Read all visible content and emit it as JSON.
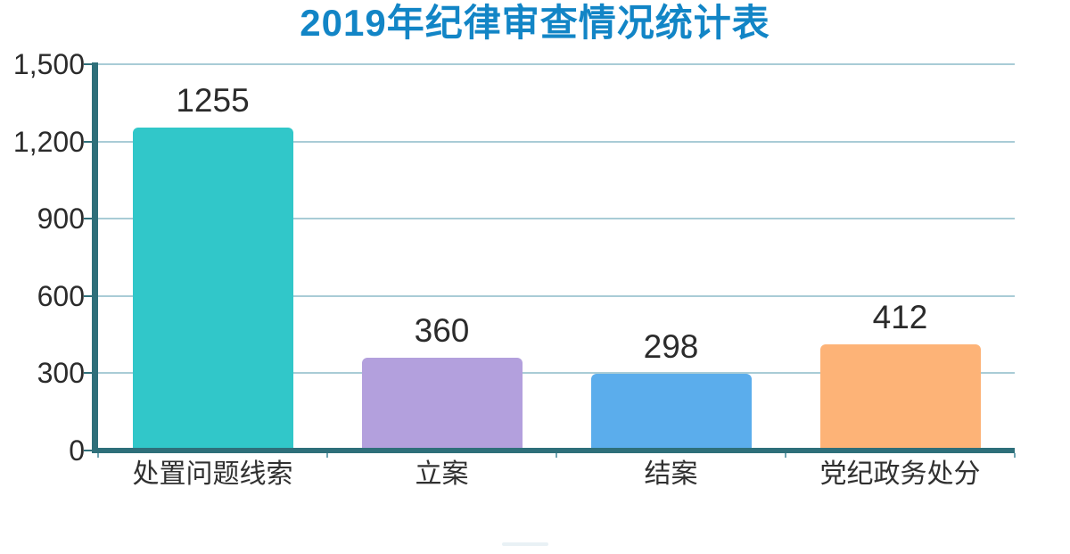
{
  "title": {
    "text": "2019年纪律审查情况统计表",
    "color": "#1285c6"
  },
  "chart_data": {
    "type": "bar",
    "title": "2019年纪律审查情况统计表",
    "categories": [
      "处置问题线索",
      "立案",
      "结案",
      "党纪政务处分"
    ],
    "values": [
      1255,
      360,
      298,
      412
    ],
    "value_labels": [
      "1255",
      "360",
      "298",
      "412"
    ],
    "bar_colors": [
      "#31c7c9",
      "#b3a0dd",
      "#5badec",
      "#fdb377"
    ],
    "xlabel": "",
    "ylabel": "",
    "ylim": [
      0,
      1500
    ],
    "yticks": [
      {
        "label": "1,500",
        "value": 1500
      },
      {
        "label": "1,200",
        "value": 1200
      },
      {
        "label": "900",
        "value": 900
      },
      {
        "label": "600",
        "value": 600
      },
      {
        "label": "300",
        "value": 300
      },
      {
        "label": "0",
        "value": 0
      }
    ],
    "grid": true,
    "legend": "none",
    "colors": {
      "axis": "#2e6f7a",
      "gridline": "#a9ccd6",
      "boundary_tick": "#6fa3b0",
      "tick_label_text": "#2b2b2b",
      "value_label_text": "#2b2b2b",
      "category_label_text": "#303030"
    }
  }
}
